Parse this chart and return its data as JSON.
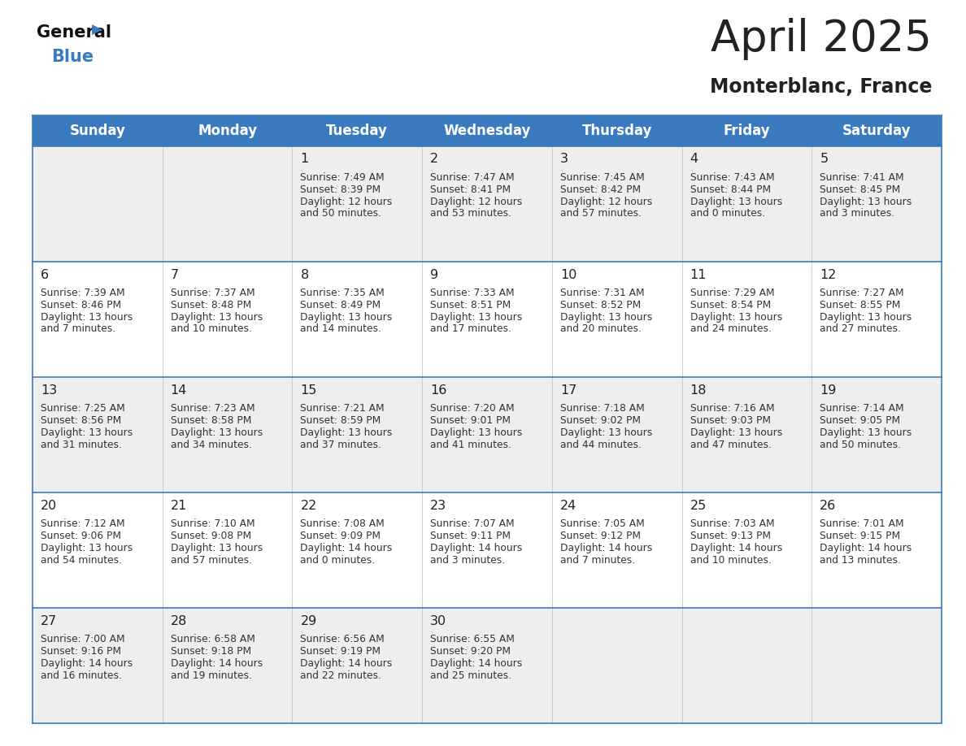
{
  "title": "April 2025",
  "subtitle": "Monterblanc, France",
  "header_bg_color": "#3a7bbf",
  "header_text_color": "#ffffff",
  "day_names": [
    "Sunday",
    "Monday",
    "Tuesday",
    "Wednesday",
    "Thursday",
    "Friday",
    "Saturday"
  ],
  "row_bg_even": "#eeeeee",
  "row_bg_odd": "#ffffff",
  "cell_border_color": "#3a7bbf",
  "date_text_color": "#222222",
  "info_text_color": "#333333",
  "title_color": "#222222",
  "subtitle_color": "#222222",
  "logo_general_color": "#111111",
  "logo_blue_color": "#3a7bbf",
  "weeks": [
    [
      {
        "date": "",
        "sunrise": "",
        "sunset": "",
        "daylight": ""
      },
      {
        "date": "",
        "sunrise": "",
        "sunset": "",
        "daylight": ""
      },
      {
        "date": "1",
        "sunrise": "7:49 AM",
        "sunset": "8:39 PM",
        "daylight": "12 hours and 50 minutes."
      },
      {
        "date": "2",
        "sunrise": "7:47 AM",
        "sunset": "8:41 PM",
        "daylight": "12 hours and 53 minutes."
      },
      {
        "date": "3",
        "sunrise": "7:45 AM",
        "sunset": "8:42 PM",
        "daylight": "12 hours and 57 minutes."
      },
      {
        "date": "4",
        "sunrise": "7:43 AM",
        "sunset": "8:44 PM",
        "daylight": "13 hours and 0 minutes."
      },
      {
        "date": "5",
        "sunrise": "7:41 AM",
        "sunset": "8:45 PM",
        "daylight": "13 hours and 3 minutes."
      }
    ],
    [
      {
        "date": "6",
        "sunrise": "7:39 AM",
        "sunset": "8:46 PM",
        "daylight": "13 hours and 7 minutes."
      },
      {
        "date": "7",
        "sunrise": "7:37 AM",
        "sunset": "8:48 PM",
        "daylight": "13 hours and 10 minutes."
      },
      {
        "date": "8",
        "sunrise": "7:35 AM",
        "sunset": "8:49 PM",
        "daylight": "13 hours and 14 minutes."
      },
      {
        "date": "9",
        "sunrise": "7:33 AM",
        "sunset": "8:51 PM",
        "daylight": "13 hours and 17 minutes."
      },
      {
        "date": "10",
        "sunrise": "7:31 AM",
        "sunset": "8:52 PM",
        "daylight": "13 hours and 20 minutes."
      },
      {
        "date": "11",
        "sunrise": "7:29 AM",
        "sunset": "8:54 PM",
        "daylight": "13 hours and 24 minutes."
      },
      {
        "date": "12",
        "sunrise": "7:27 AM",
        "sunset": "8:55 PM",
        "daylight": "13 hours and 27 minutes."
      }
    ],
    [
      {
        "date": "13",
        "sunrise": "7:25 AM",
        "sunset": "8:56 PM",
        "daylight": "13 hours and 31 minutes."
      },
      {
        "date": "14",
        "sunrise": "7:23 AM",
        "sunset": "8:58 PM",
        "daylight": "13 hours and 34 minutes."
      },
      {
        "date": "15",
        "sunrise": "7:21 AM",
        "sunset": "8:59 PM",
        "daylight": "13 hours and 37 minutes."
      },
      {
        "date": "16",
        "sunrise": "7:20 AM",
        "sunset": "9:01 PM",
        "daylight": "13 hours and 41 minutes."
      },
      {
        "date": "17",
        "sunrise": "7:18 AM",
        "sunset": "9:02 PM",
        "daylight": "13 hours and 44 minutes."
      },
      {
        "date": "18",
        "sunrise": "7:16 AM",
        "sunset": "9:03 PM",
        "daylight": "13 hours and 47 minutes."
      },
      {
        "date": "19",
        "sunrise": "7:14 AM",
        "sunset": "9:05 PM",
        "daylight": "13 hours and 50 minutes."
      }
    ],
    [
      {
        "date": "20",
        "sunrise": "7:12 AM",
        "sunset": "9:06 PM",
        "daylight": "13 hours and 54 minutes."
      },
      {
        "date": "21",
        "sunrise": "7:10 AM",
        "sunset": "9:08 PM",
        "daylight": "13 hours and 57 minutes."
      },
      {
        "date": "22",
        "sunrise": "7:08 AM",
        "sunset": "9:09 PM",
        "daylight": "14 hours and 0 minutes."
      },
      {
        "date": "23",
        "sunrise": "7:07 AM",
        "sunset": "9:11 PM",
        "daylight": "14 hours and 3 minutes."
      },
      {
        "date": "24",
        "sunrise": "7:05 AM",
        "sunset": "9:12 PM",
        "daylight": "14 hours and 7 minutes."
      },
      {
        "date": "25",
        "sunrise": "7:03 AM",
        "sunset": "9:13 PM",
        "daylight": "14 hours and 10 minutes."
      },
      {
        "date": "26",
        "sunrise": "7:01 AM",
        "sunset": "9:15 PM",
        "daylight": "14 hours and 13 minutes."
      }
    ],
    [
      {
        "date": "27",
        "sunrise": "7:00 AM",
        "sunset": "9:16 PM",
        "daylight": "14 hours and 16 minutes."
      },
      {
        "date": "28",
        "sunrise": "6:58 AM",
        "sunset": "9:18 PM",
        "daylight": "14 hours and 19 minutes."
      },
      {
        "date": "29",
        "sunrise": "6:56 AM",
        "sunset": "9:19 PM",
        "daylight": "14 hours and 22 minutes."
      },
      {
        "date": "30",
        "sunrise": "6:55 AM",
        "sunset": "9:20 PM",
        "daylight": "14 hours and 25 minutes."
      },
      {
        "date": "",
        "sunrise": "",
        "sunset": "",
        "daylight": ""
      },
      {
        "date": "",
        "sunrise": "",
        "sunset": "",
        "daylight": ""
      },
      {
        "date": "",
        "sunrise": "",
        "sunset": "",
        "daylight": ""
      }
    ]
  ]
}
